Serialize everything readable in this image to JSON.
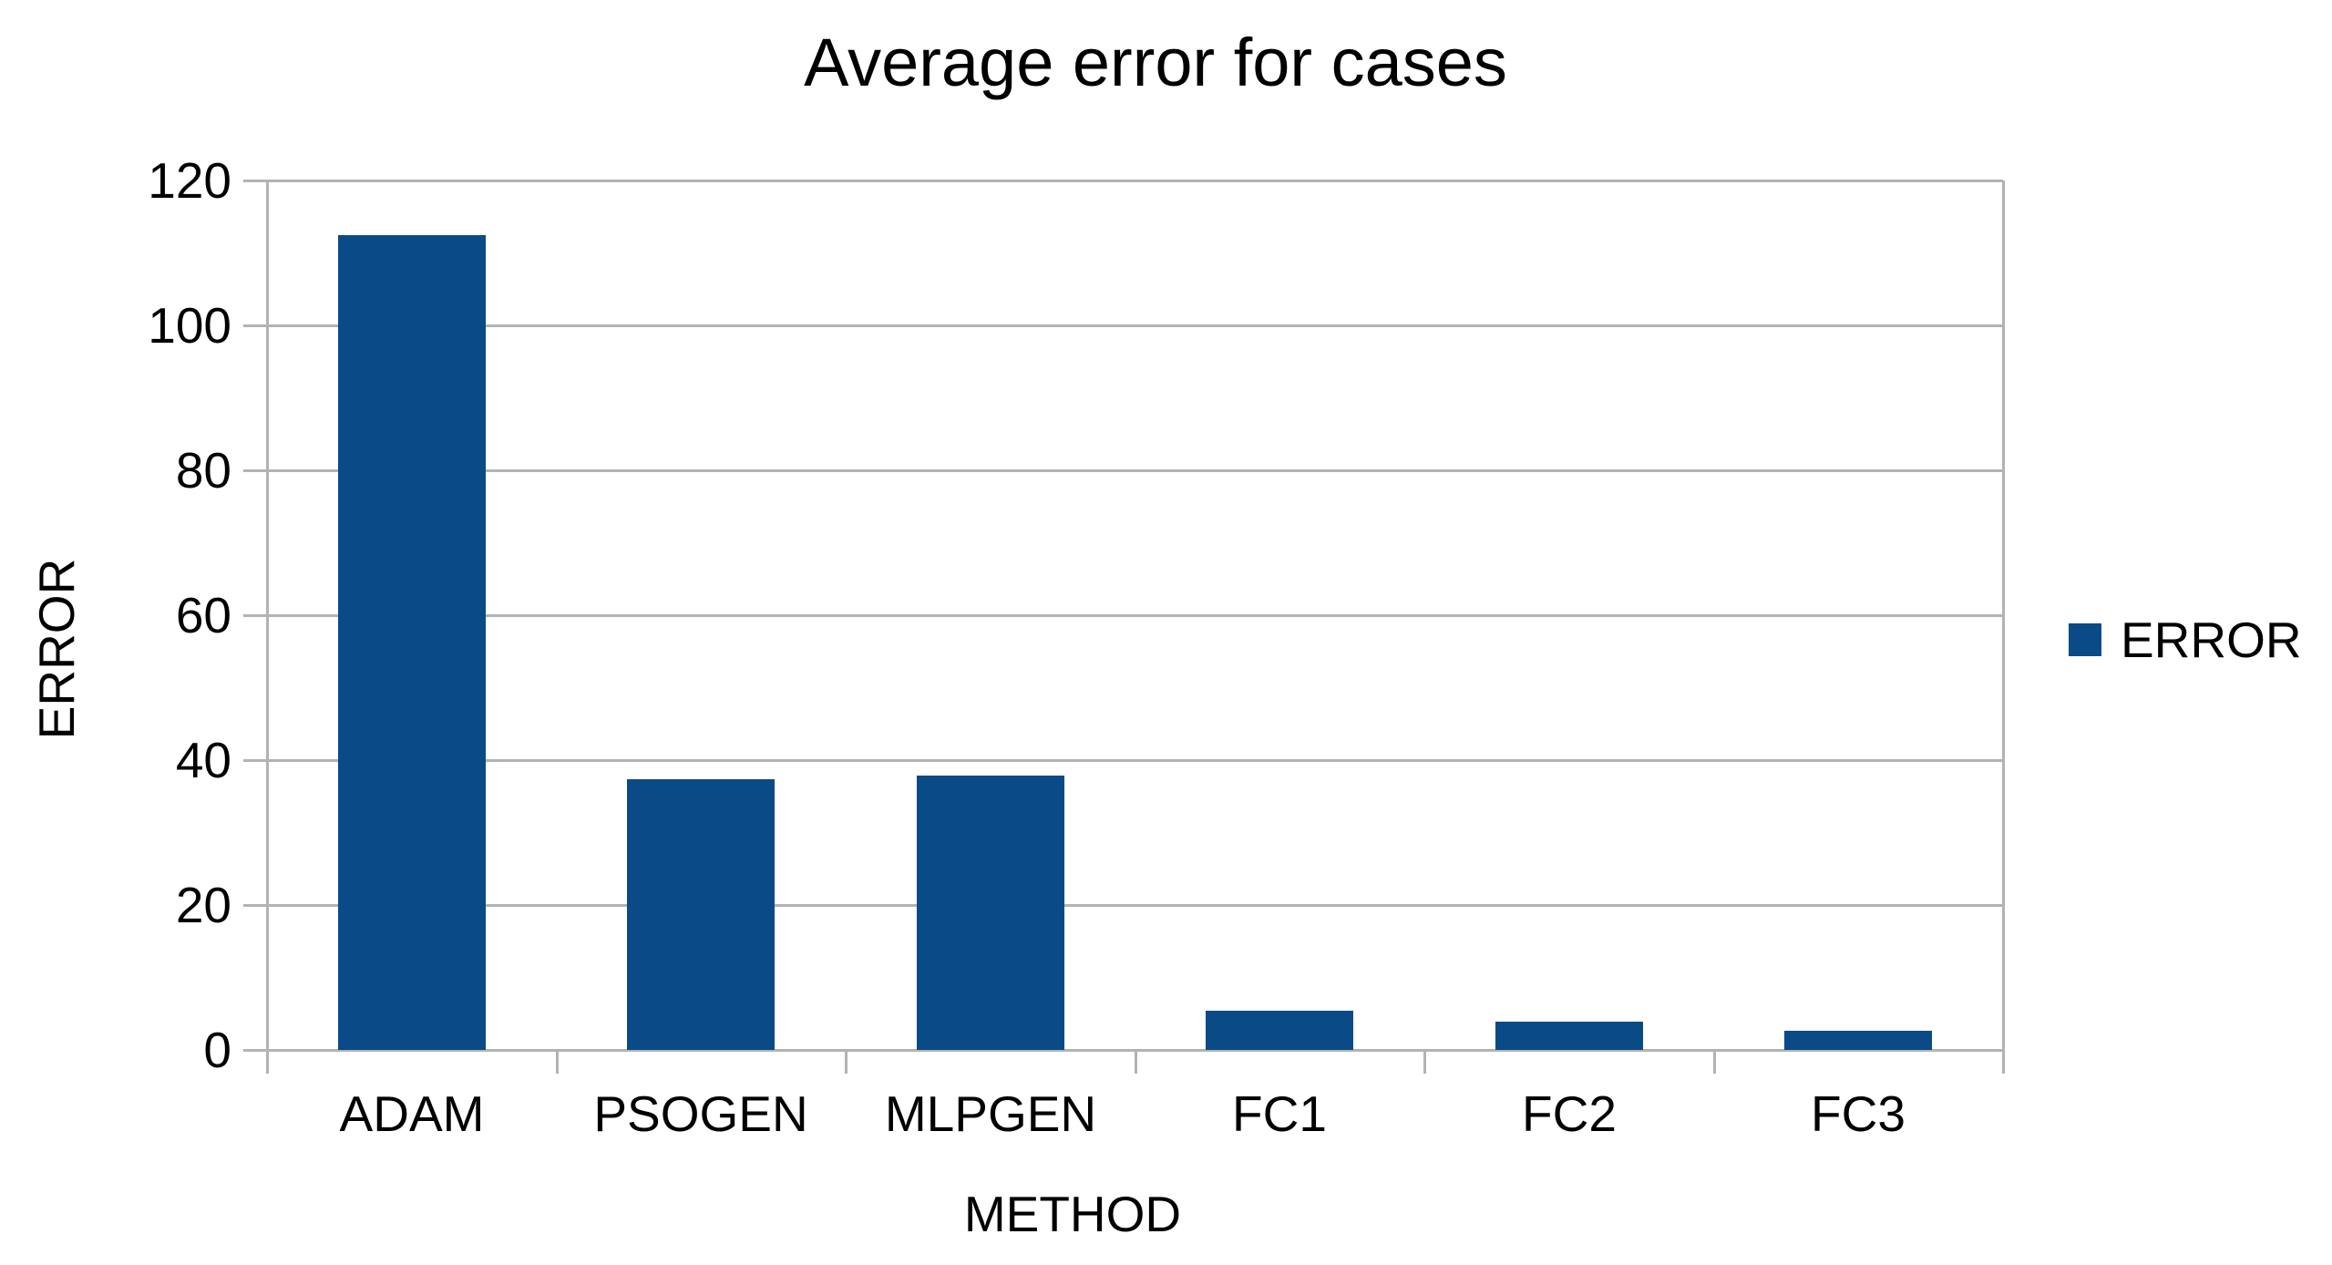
{
  "chart_data": {
    "type": "bar",
    "title": "Average error for cases",
    "xlabel": "METHOD",
    "ylabel": "ERROR",
    "categories": [
      "ADAM",
      "PSOGEN",
      "MLPGEN",
      "FC1",
      "FC2",
      "FC3"
    ],
    "series": [
      {
        "name": "ERROR",
        "values": [
          112.5,
          37.3,
          37.8,
          5.4,
          3.9,
          2.6
        ]
      }
    ],
    "values": [
      112.5,
      37.3,
      37.8,
      5.4,
      3.9,
      2.6
    ],
    "ylim": [
      0,
      120
    ],
    "yticks": [
      0,
      20,
      40,
      60,
      80,
      100,
      120
    ],
    "grid": "horizontal",
    "legend": [
      "ERROR"
    ],
    "legend_position": "right-middle",
    "colors": {
      "bar": "#0a4a87",
      "gridline": "#b3b3b3",
      "axis": "#b3b3b3",
      "text": "#000000",
      "background": "#ffffff"
    }
  }
}
